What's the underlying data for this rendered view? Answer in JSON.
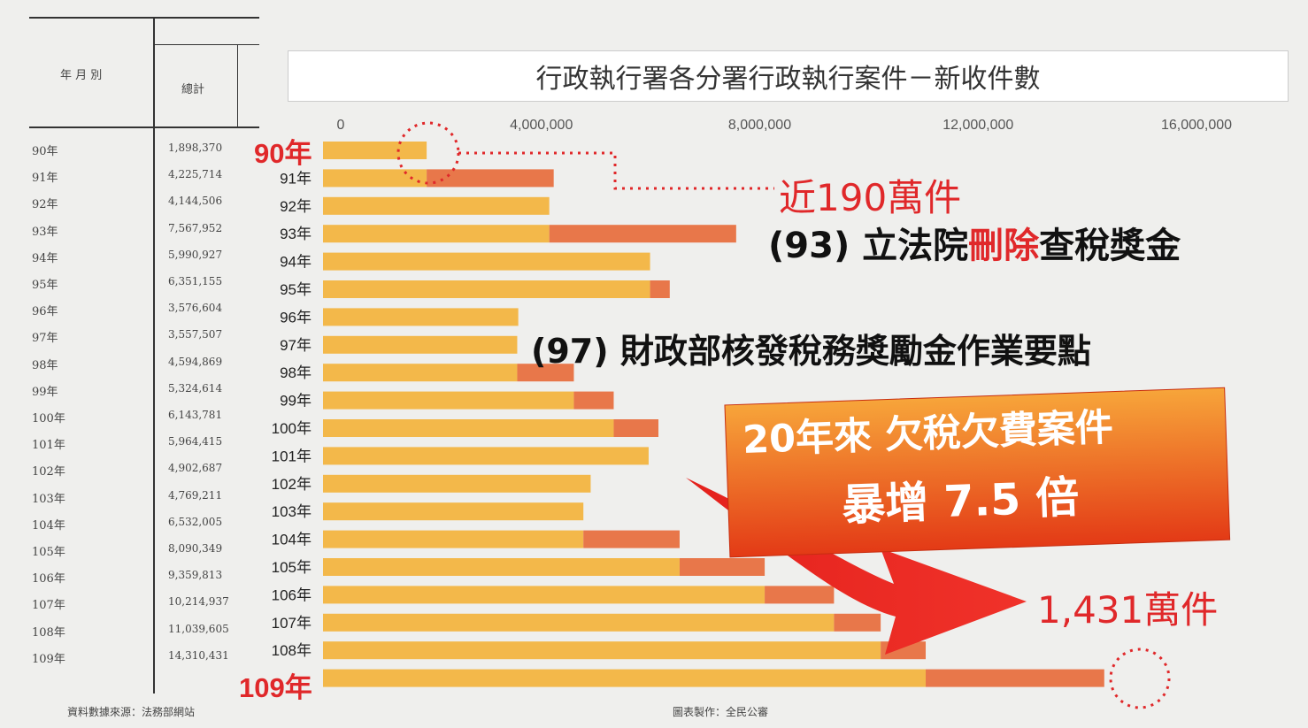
{
  "table": {
    "header_period": "年 月 別",
    "header_total": "總計",
    "rows": [
      {
        "year": "90年",
        "total": "1,898,370"
      },
      {
        "year": "91年",
        "total": "4,225,714"
      },
      {
        "year": "92年",
        "total": "4,144,506"
      },
      {
        "year": "93年",
        "total": "7,567,952"
      },
      {
        "year": "94年",
        "total": "5,990,927"
      },
      {
        "year": "95年",
        "total": "6,351,155"
      },
      {
        "year": "96年",
        "total": "3,576,604"
      },
      {
        "year": "97年",
        "total": "3,557,507"
      },
      {
        "year": "98年",
        "total": "4,594,869"
      },
      {
        "year": "99年",
        "total": "5,324,614"
      },
      {
        "year": "100年",
        "total": "6,143,781"
      },
      {
        "year": "101年",
        "total": "5,964,415"
      },
      {
        "year": "102年",
        "total": "4,902,687"
      },
      {
        "year": "103年",
        "total": "4,769,211"
      },
      {
        "year": "104年",
        "total": "6,532,005"
      },
      {
        "year": "105年",
        "total": "8,090,349"
      },
      {
        "year": "106年",
        "total": "9,359,813"
      },
      {
        "year": "107年",
        "total": "10,214,937"
      },
      {
        "year": "108年",
        "total": "11,039,605"
      },
      {
        "year": "109年",
        "total": "14,310,431"
      }
    ]
  },
  "footer": {
    "source": "資料數據來源：法務部網站",
    "credit": "圖表製作：全民公審"
  },
  "annotations": {
    "first_year_label": "90年",
    "last_year_label": "109年",
    "near_190": "近190萬件",
    "note_93_prefix": "(93) 立法院",
    "note_93_red": "刪除",
    "note_93_suffix": "查稅獎金",
    "note_97": "(97) 財政部核發稅務獎勵金作業要點",
    "banner_line1": "20年來 欠稅欠費案件",
    "banner_line2": "暴增 7.5 倍",
    "final_value": "1,431萬件"
  },
  "colors": {
    "bar_base": "#f3b84a",
    "bar_overlay": "#e8774a",
    "highlight_red": "#e0282a",
    "banner_orange": "#f05a1a"
  },
  "chart_data": {
    "type": "bar",
    "orientation": "horizontal",
    "title": "行政執行署各分署行政執行案件－新收件數",
    "categories": [
      "90年",
      "91年",
      "92年",
      "93年",
      "94年",
      "95年",
      "96年",
      "97年",
      "98年",
      "99年",
      "100年",
      "101年",
      "102年",
      "103年",
      "104年",
      "105年",
      "106年",
      "107年",
      "108年",
      "109年"
    ],
    "values": [
      1898370,
      4225714,
      4144506,
      7567952,
      5990927,
      6351155,
      3576604,
      3557507,
      4594869,
      5324614,
      6143781,
      5964415,
      4902687,
      4769211,
      6532005,
      8090349,
      9359813,
      10214937,
      11039605,
      14310431
    ],
    "xlim": [
      0,
      16000000
    ],
    "x_ticks": [
      "0",
      "4,000,000",
      "8,000,000",
      "12,000,000",
      "16,000,000"
    ],
    "x_tick_values": [
      0,
      4000000,
      8000000,
      12000000,
      16000000
    ],
    "grid": false,
    "legend": "none"
  }
}
